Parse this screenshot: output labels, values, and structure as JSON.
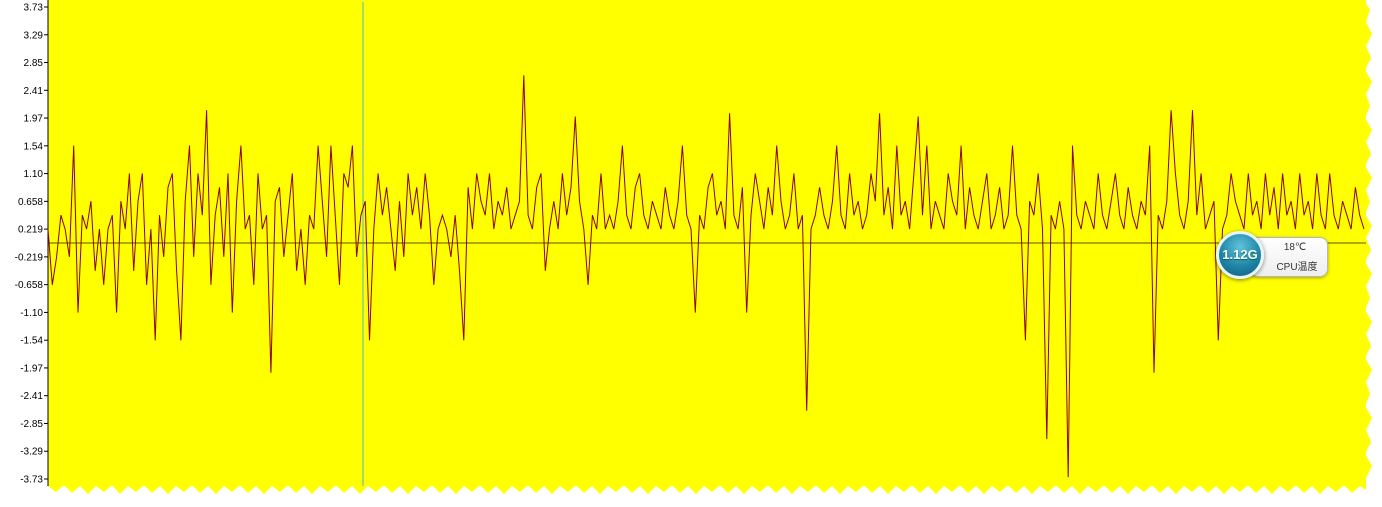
{
  "chart_data": {
    "type": "line",
    "y_ticks": [
      "3.73",
      "3.29",
      "2.85",
      "2.41",
      "1.97",
      "1.54",
      "1.10",
      "0.658",
      "0.219",
      "-0.219",
      "-0.658",
      "-1.10",
      "-1.54",
      "-1.97",
      "-2.41",
      "-2.85",
      "-3.29",
      "-3.73"
    ],
    "ylim": [
      -3.73,
      3.73
    ],
    "baseline": 0,
    "grid": false,
    "colors": {
      "plot_bg": "#ffff00",
      "series": "#8b0000",
      "baseline": "#555500",
      "cursor": "#4ab8c8"
    },
    "series": [
      {
        "values": [
          0.22,
          -0.66,
          -0.22,
          0.44,
          0.22,
          -0.22,
          1.54,
          -1.1,
          0.44,
          0.22,
          0.66,
          -0.44,
          0.22,
          -0.66,
          0.22,
          0.44,
          -1.1,
          0.66,
          0.22,
          1.1,
          -0.44,
          0.66,
          1.1,
          -0.66,
          0.22,
          -1.54,
          0.44,
          -0.22,
          0.88,
          1.1,
          -0.44,
          -1.54,
          0.66,
          1.54,
          -0.22,
          1.1,
          0.44,
          2.1,
          -0.66,
          0.44,
          0.88,
          -0.22,
          1.1,
          -1.1,
          0.66,
          1.54,
          0.22,
          0.44,
          -0.66,
          1.1,
          0.22,
          0.44,
          -2.05,
          0.66,
          0.88,
          -0.22,
          0.44,
          1.1,
          -0.44,
          0.22,
          -0.66,
          0.44,
          0.22,
          1.54,
          0.66,
          -0.22,
          1.54,
          0.44,
          -0.66,
          1.1,
          0.88,
          1.54,
          -0.22,
          0.44,
          0.66,
          -1.54,
          0.22,
          1.1,
          0.44,
          0.88,
          0.22,
          -0.44,
          0.66,
          -0.22,
          1.1,
          0.44,
          0.88,
          0.22,
          1.1,
          0.44,
          -0.66,
          0.22,
          0.44,
          0.22,
          -0.22,
          0.44,
          -0.44,
          -1.54,
          0.88,
          0.22,
          1.1,
          0.66,
          0.44,
          1.1,
          0.22,
          0.66,
          0.44,
          0.88,
          0.22,
          0.44,
          0.66,
          2.65,
          0.44,
          0.22,
          0.88,
          1.1,
          -0.44,
          0.22,
          0.66,
          0.22,
          1.1,
          0.44,
          0.88,
          2.0,
          0.66,
          0.22,
          -0.66,
          0.44,
          0.22,
          1.1,
          0.22,
          0.44,
          0.22,
          0.66,
          1.54,
          0.44,
          0.22,
          0.88,
          1.1,
          0.44,
          0.22,
          0.66,
          0.44,
          0.22,
          0.88,
          0.44,
          0.22,
          0.66,
          1.54,
          0.44,
          0.22,
          -1.1,
          0.44,
          0.22,
          0.88,
          1.1,
          0.44,
          0.66,
          0.22,
          2.05,
          0.44,
          0.22,
          0.88,
          -1.1,
          0.44,
          1.1,
          0.66,
          0.22,
          0.88,
          0.44,
          1.54,
          0.66,
          0.22,
          0.44,
          1.1,
          0.22,
          0.44,
          -2.65,
          0.22,
          0.44,
          0.88,
          0.44,
          0.22,
          0.66,
          1.54,
          0.44,
          0.22,
          1.1,
          0.44,
          0.66,
          0.22,
          0.44,
          1.1,
          0.66,
          2.05,
          0.44,
          0.88,
          0.22,
          1.54,
          0.44,
          0.66,
          0.22,
          1.1,
          2.0,
          0.44,
          1.54,
          0.22,
          0.66,
          0.44,
          0.22,
          1.1,
          0.66,
          0.44,
          1.54,
          0.22,
          0.88,
          0.44,
          0.22,
          0.66,
          1.1,
          0.22,
          0.44,
          0.88,
          0.22,
          0.44,
          1.54,
          0.44,
          0.22,
          -1.54,
          0.66,
          0.44,
          1.1,
          0.22,
          -3.1,
          0.44,
          0.22,
          0.66,
          0.22,
          -3.7,
          1.54,
          0.44,
          0.22,
          0.66,
          0.44,
          0.22,
          1.1,
          0.44,
          0.22,
          0.66,
          1.1,
          0.44,
          0.22,
          0.88,
          0.44,
          0.22,
          0.66,
          0.44,
          1.54,
          -2.05,
          0.44,
          0.22,
          0.66,
          2.1,
          1.1,
          0.44,
          0.22,
          0.66,
          2.1,
          0.44,
          1.1,
          0.22,
          0.44,
          0.66,
          -1.54,
          0.22,
          0.44,
          1.1,
          0.66,
          0.44,
          0.22,
          1.1,
          0.44,
          0.66,
          0.22,
          1.1,
          0.44,
          0.88,
          0.22,
          1.1,
          0.44,
          0.66,
          0.22,
          1.1,
          0.44,
          0.66,
          0.22,
          1.1,
          0.44,
          0.22,
          1.1,
          0.44,
          0.22,
          0.66,
          0.44,
          0.22,
          0.88,
          0.44,
          0.22
        ]
      }
    ]
  },
  "widget": {
    "memory": "1.12G",
    "temperature": "18℃",
    "label": "CPU温度"
  }
}
